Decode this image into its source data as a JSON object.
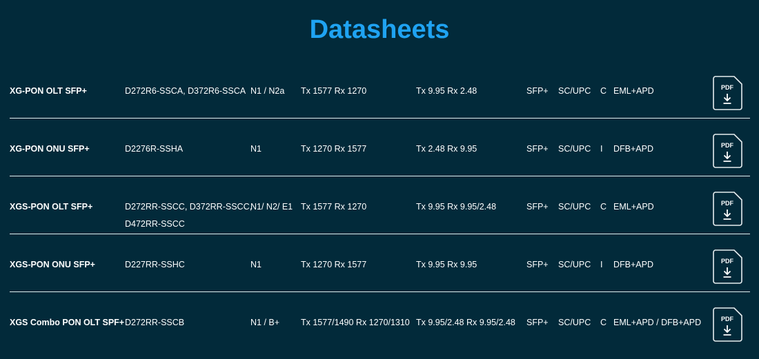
{
  "page": {
    "title": "Datasheets"
  },
  "rows": [
    {
      "name": "XG-PON OLT SFP+",
      "models": [
        "D272R6-SSCA, D372R6-SSCA"
      ],
      "standard": "N1 / N2a",
      "wavelength": "Tx 1577 Rx 1270",
      "rate": "Tx 9.95 Rx 2.48",
      "form": "SFP+",
      "connector": "SC/UPC",
      "temp": "C",
      "components": "EML+APD",
      "pdf_label": "PDF"
    },
    {
      "name": "XG-PON ONU SFP+",
      "models": [
        "D2276R-SSHA"
      ],
      "standard": "N1",
      "wavelength": "Tx 1270 Rx 1577",
      "rate": "Tx 2.48 Rx 9.95",
      "form": "SFP+",
      "connector": "SC/UPC",
      "temp": "I",
      "components": "DFB+APD",
      "pdf_label": "PDF"
    },
    {
      "name": "XGS-PON OLT SFP+",
      "models": [
        "D272RR-SSCC, D372RR-SSCC,",
        "D472RR-SSCC"
      ],
      "standard": "N1/ N2/ E1",
      "wavelength": "Tx 1577 Rx 1270",
      "rate": "Tx 9.95 Rx 9.95/2.48",
      "form": "SFP+",
      "connector": "SC/UPC",
      "temp": "C",
      "components": "EML+APD",
      "pdf_label": "PDF"
    },
    {
      "name": "XGS-PON ONU SFP+",
      "models": [
        "D227RR-SSHC"
      ],
      "standard": "N1",
      "wavelength": "Tx 1270 Rx 1577",
      "rate": "Tx 9.95 Rx 9.95",
      "form": "SFP+",
      "connector": "SC/UPC",
      "temp": "I",
      "components": "DFB+APD",
      "pdf_label": "PDF"
    },
    {
      "name": "XGS Combo PON OLT SPF+",
      "models": [
        "D272RR-SSCB"
      ],
      "standard": "N1 / B+",
      "wavelength": "Tx 1577/1490 Rx 1270/1310",
      "rate": "Tx 9.95/2.48 Rx 9.95/2.48",
      "form": "SFP+",
      "connector": "SC/UPC",
      "temp": "C",
      "components": "EML+APD / DFB+APD",
      "pdf_label": "PDF"
    }
  ],
  "colors": {
    "background": "#022a3a",
    "title": "#1fa3f2",
    "text": "#ffffff"
  },
  "icons": {
    "download": "pdf-download-icon"
  }
}
